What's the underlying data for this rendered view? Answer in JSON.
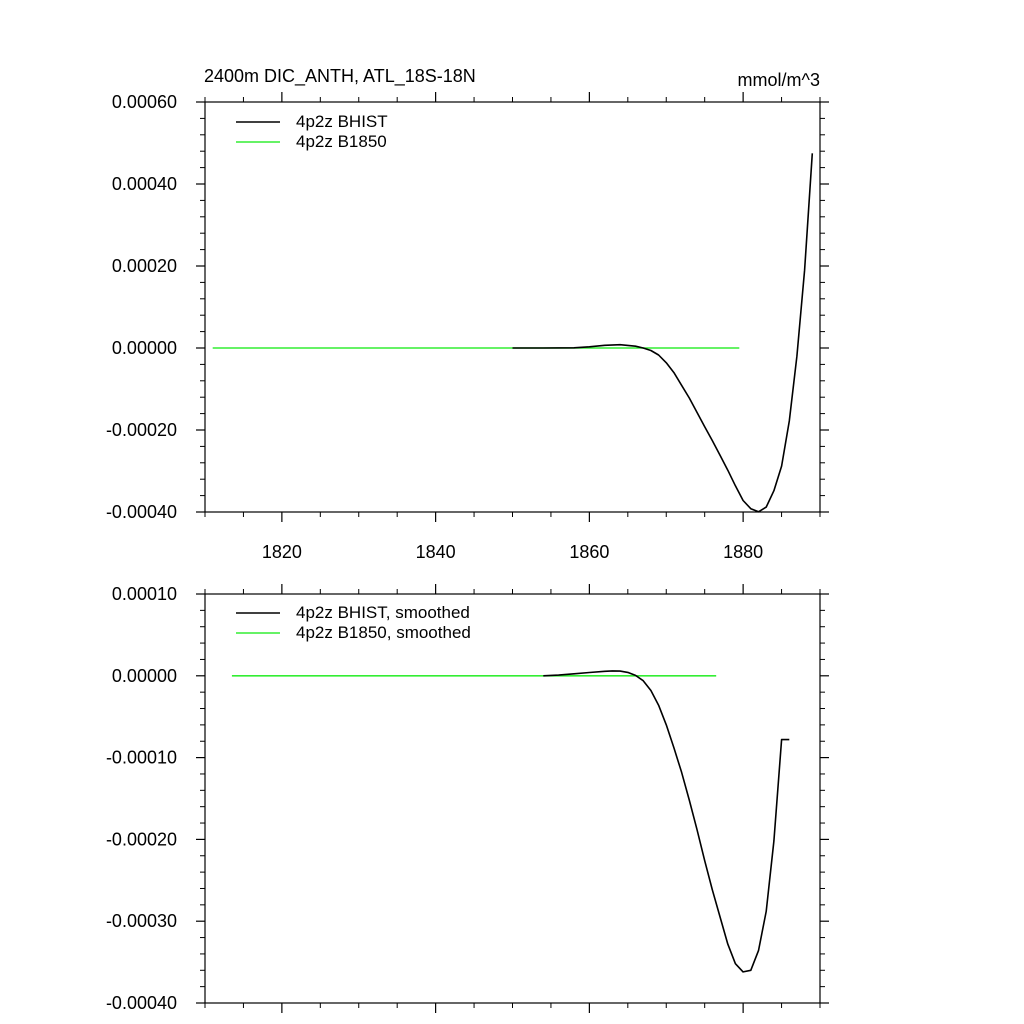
{
  "colors": {
    "bhist": "#000000",
    "b1850": "#33ee33",
    "axes": "#000000",
    "background": "#ffffff"
  },
  "chart_data": [
    {
      "type": "line",
      "title": "2400m DIC_ANTH, ATL_18S-18N",
      "units": "mmol/m^3",
      "xlim": [
        1810,
        1890
      ],
      "ylim": [
        -0.0004,
        0.0006
      ],
      "x_ticks": [
        1820,
        1840,
        1860,
        1880
      ],
      "x_tick_labels": [
        "1820",
        "1840",
        "1860",
        "1880"
      ],
      "y_ticks": [
        -0.0004,
        -0.0002,
        0.0,
        0.0002,
        0.0004,
        0.0006
      ],
      "y_tick_labels": [
        "-0.00040",
        "-0.00020",
        "0.00000",
        "0.00020",
        "0.00040",
        "0.00060"
      ],
      "legend_location": "top-left",
      "series": [
        {
          "name": "4p2z BHIST",
          "color": "#000000",
          "x": [
            1850,
            1854,
            1858,
            1860,
            1862,
            1864,
            1866,
            1867,
            1868,
            1869,
            1870,
            1871,
            1872,
            1873,
            1874,
            1875,
            1876,
            1877,
            1878,
            1879,
            1880,
            1881,
            1882,
            1883,
            1884,
            1885,
            1886,
            1887,
            1888,
            1889
          ],
          "y": [
            0.0,
            0.0,
            5e-07,
            3e-06,
            6.5e-06,
            8e-06,
            4.5e-06,
            0.0,
            -6e-06,
            -1.7e-05,
            -3.6e-05,
            -6e-05,
            -9.1e-05,
            -0.000122,
            -0.000157,
            -0.000192,
            -0.000226,
            -0.000262,
            -0.000298,
            -0.000336,
            -0.000372,
            -0.000392,
            -0.0003995,
            -0.000388,
            -0.000348,
            -0.000288,
            -0.000178,
            -2e-05,
            0.00019,
            0.000475
          ]
        },
        {
          "name": "4p2z B1850",
          "color": "#33ee33",
          "x": [
            1811,
            1879.5
          ],
          "y": [
            0.0,
            0.0
          ]
        }
      ]
    },
    {
      "type": "line",
      "xlim": [
        1810,
        1890
      ],
      "ylim": [
        -0.0004,
        0.0001
      ],
      "x_ticks": [
        1820,
        1840,
        1860,
        1880
      ],
      "y_ticks": [
        -0.0004,
        -0.0003,
        -0.0002,
        -0.0001,
        0.0,
        0.0001
      ],
      "y_tick_labels": [
        "-0.00040",
        "-0.00030",
        "-0.00020",
        "-0.00010",
        "0.00000",
        "0.00010"
      ],
      "legend_location": "top-left",
      "series": [
        {
          "name": "4p2z BHIST, smoothed",
          "color": "#000000",
          "x": [
            1854,
            1856,
            1858,
            1860,
            1862,
            1863,
            1864,
            1865,
            1866,
            1867,
            1868,
            1869,
            1870,
            1871,
            1872,
            1873,
            1874,
            1875,
            1876,
            1877,
            1878,
            1879,
            1880,
            1881,
            1882,
            1883,
            1884,
            1885,
            1886
          ],
          "y": [
            0.0,
            8e-07,
            2.5e-06,
            4e-06,
            5.5e-06,
            6e-06,
            5.8e-06,
            4.2e-06,
            5e-07,
            -6e-06,
            -1.8e-05,
            -3.6e-05,
            -6e-05,
            -8.8e-05,
            -0.000118,
            -0.000152,
            -0.000188,
            -0.000226,
            -0.000262,
            -0.000295,
            -0.000328,
            -0.000352,
            -0.000362,
            -0.00036,
            -0.000336,
            -0.000288,
            -0.000202,
            -7.8e-05,
            -7.8e-05
          ]
        },
        {
          "name": "4p2z B1850, smoothed",
          "color": "#33ee33",
          "x": [
            1813.5,
            1876.5
          ],
          "y": [
            0.0,
            0.0
          ]
        }
      ]
    }
  ]
}
